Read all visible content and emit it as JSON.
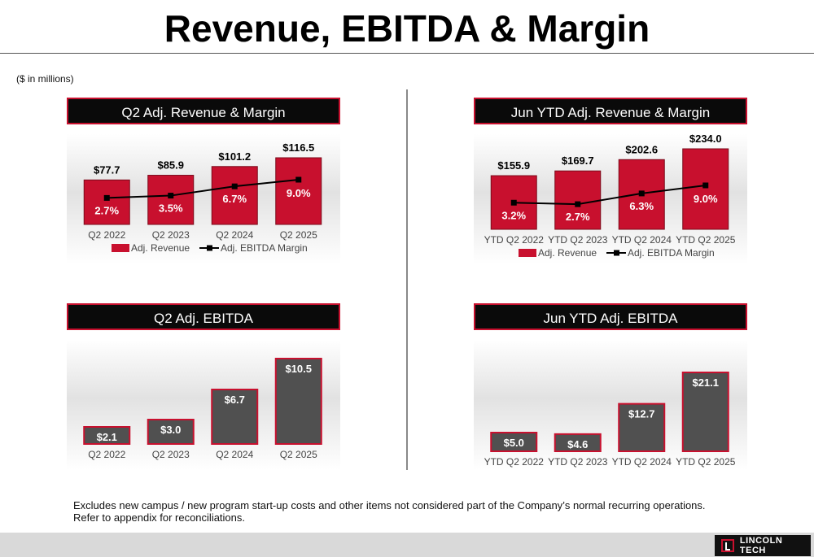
{
  "header": {
    "title": "Revenue, EBITDA & Margin",
    "units": "($ in millions)"
  },
  "footnote": "Excludes new campus / new program start-up costs and other items not considered part of the Company’s normal recurring operations.  Refer to appendix for reconciliations.",
  "logo": {
    "text": "LINCOLN TECH"
  },
  "colors": {
    "revenue_bar": "#c8102e",
    "ebitda_bar": "#505050",
    "margin_line": "#000000",
    "panel_title_bg": "#0a0a0a"
  },
  "chart_data": [
    {
      "type": "bar",
      "title": "Q2 Adj. Revenue & Margin",
      "categories": [
        "Q2 2022",
        "Q2 2023",
        "Q2 2024",
        "Q2 2025"
      ],
      "series": [
        {
          "name": "Adj. Revenue",
          "type": "bar",
          "values": [
            77.7,
            85.9,
            101.2,
            116.5
          ],
          "labels": [
            "$77.7",
            "$85.9",
            "$101.2",
            "$116.5"
          ]
        },
        {
          "name": "Adj. EBITDA Margin",
          "type": "line",
          "values": [
            2.7,
            3.5,
            6.7,
            9.0
          ],
          "labels": [
            "2.7%",
            "3.5%",
            "6.7%",
            "9.0%"
          ]
        }
      ],
      "legend": "bottom"
    },
    {
      "type": "bar",
      "title": "Jun YTD Adj. Revenue & Margin",
      "categories": [
        "YTD Q2 2022",
        "YTD Q2 2023",
        "YTD Q2 2024",
        "YTD Q2 2025"
      ],
      "series": [
        {
          "name": "Adj. Revenue",
          "type": "bar",
          "values": [
            155.9,
            169.7,
            202.6,
            234.0
          ],
          "labels": [
            "$155.9",
            "$169.7",
            "$202.6",
            "$234.0"
          ]
        },
        {
          "name": "Adj. EBITDA Margin",
          "type": "line",
          "values": [
            3.2,
            2.7,
            6.3,
            9.0
          ],
          "labels": [
            "3.2%",
            "2.7%",
            "6.3%",
            "9.0%"
          ]
        }
      ],
      "legend": "bottom"
    },
    {
      "type": "bar",
      "title": "Q2 Adj. EBITDA",
      "categories": [
        "Q2 2022",
        "Q2 2023",
        "Q2 2024",
        "Q2 2025"
      ],
      "series": [
        {
          "type": "bar",
          "values": [
            2.1,
            3.0,
            6.7,
            10.5
          ],
          "labels": [
            "$2.1",
            "$3.0",
            "$6.7",
            "$10.5"
          ]
        }
      ]
    },
    {
      "type": "bar",
      "title": "Jun YTD Adj. EBITDA",
      "categories": [
        "YTD Q2 2022",
        "YTD Q2 2023",
        "YTD Q2 2024",
        "YTD Q2 2025"
      ],
      "series": [
        {
          "type": "bar",
          "values": [
            5.0,
            4.6,
            12.7,
            21.1
          ],
          "labels": [
            "$5.0",
            "$4.6",
            "$12.7",
            "$21.1"
          ]
        }
      ]
    }
  ]
}
